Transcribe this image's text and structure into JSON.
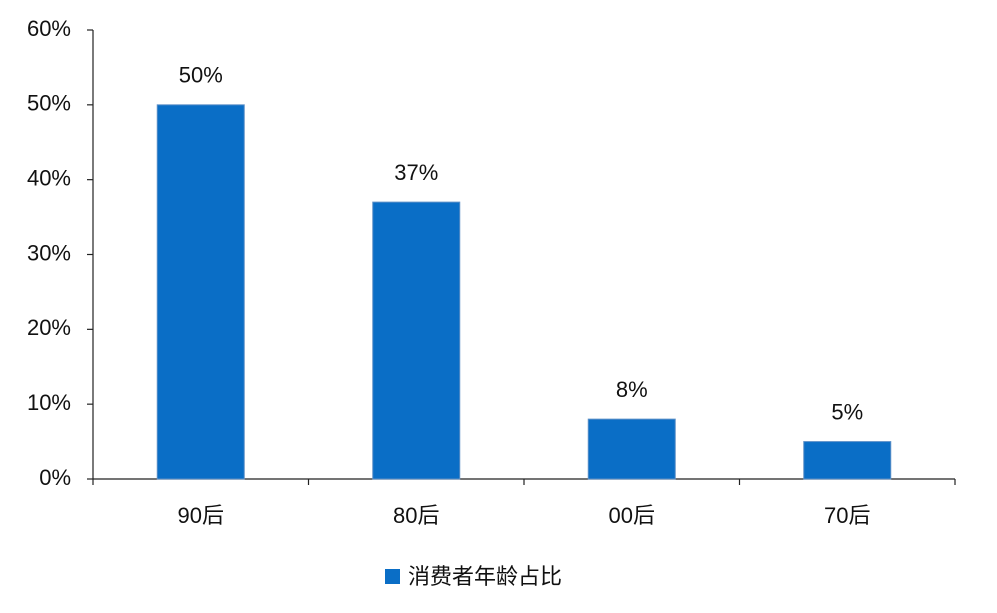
{
  "chart_data": {
    "type": "bar",
    "categories": [
      "90后",
      "80后",
      "00后",
      "70后"
    ],
    "series": [
      {
        "name": "消费者年龄占比",
        "color": "#0a6ec6",
        "values": [
          50,
          37,
          8,
          5
        ],
        "value_labels": [
          "50%",
          "37%",
          "8%",
          "5%"
        ]
      }
    ],
    "ylim": [
      0,
      60
    ],
    "yticks": [
      {
        "value": 0,
        "label": "0%"
      },
      {
        "value": 10,
        "label": "10%"
      },
      {
        "value": 20,
        "label": "20%"
      },
      {
        "value": 30,
        "label": "30%"
      },
      {
        "value": 40,
        "label": "40%"
      },
      {
        "value": 50,
        "label": "50%"
      },
      {
        "value": 60,
        "label": "60%"
      }
    ],
    "grid": false,
    "legend": "bottom"
  }
}
